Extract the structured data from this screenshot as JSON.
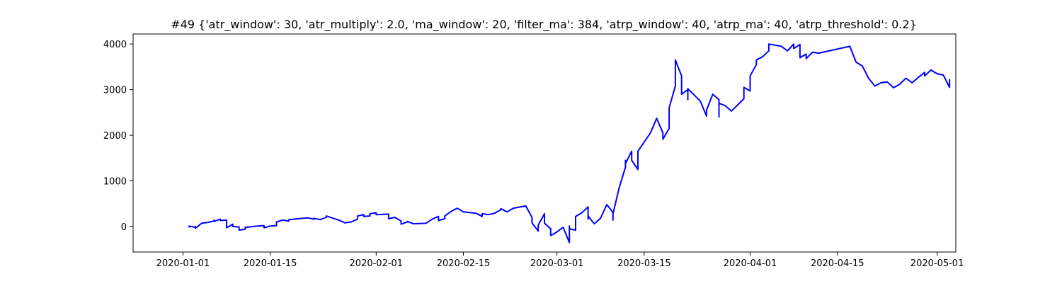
{
  "chart_data": {
    "type": "line",
    "title": "#49 {'atr_window': 30, 'atr_multiply': 2.0, 'ma_window': 20, 'filter_ma': 384, 'atrp_window': 40, 'atrp_ma': 40, 'atrp_threshold': 0.2}",
    "xlabel": "",
    "ylabel": "",
    "x_type": "date",
    "xlim": [
      "2019-12-24",
      "2020-05-04"
    ],
    "ylim": [
      -560,
      4220
    ],
    "x_ticks": [
      "2020-01-01",
      "2020-01-15",
      "2020-02-01",
      "2020-02-15",
      "2020-03-01",
      "2020-03-15",
      "2020-04-01",
      "2020-04-15",
      "2020-05-01"
    ],
    "y_ticks": [
      0,
      1000,
      2000,
      3000,
      4000
    ],
    "grid": false,
    "legend": "none",
    "series": [
      {
        "color": "#0000ff",
        "points": [
          [
            "2020-01-02",
            0
          ],
          [
            "2020-01-02",
            -10
          ],
          [
            "2020-01-02",
            10
          ],
          [
            "2020-01-03",
            -20
          ],
          [
            "2020-01-03",
            0
          ],
          [
            "2020-01-03",
            -40
          ],
          [
            "2020-01-04",
            70
          ],
          [
            "2020-01-05",
            90
          ],
          [
            "2020-01-06",
            120
          ],
          [
            "2020-01-06",
            140
          ],
          [
            "2020-01-06",
            110
          ],
          [
            "2020-01-07",
            160
          ],
          [
            "2020-01-07",
            130
          ],
          [
            "2020-01-08",
            140
          ],
          [
            "2020-01-08",
            -30
          ],
          [
            "2020-01-09",
            50
          ],
          [
            "2020-01-09",
            0
          ],
          [
            "2020-01-10",
            -10
          ],
          [
            "2020-01-10",
            -80
          ],
          [
            "2020-01-11",
            -60
          ],
          [
            "2020-01-11",
            -20
          ],
          [
            "2020-01-13",
            10
          ],
          [
            "2020-01-14",
            20
          ],
          [
            "2020-01-14",
            -30
          ],
          [
            "2020-01-15",
            10
          ],
          [
            "2020-01-16",
            20
          ],
          [
            "2020-01-16",
            100
          ],
          [
            "2020-01-17",
            140
          ],
          [
            "2020-01-18",
            120
          ],
          [
            "2020-01-18",
            150
          ],
          [
            "2020-01-21",
            190
          ],
          [
            "2020-01-22",
            160
          ],
          [
            "2020-01-22",
            180
          ],
          [
            "2020-01-23",
            150
          ],
          [
            "2020-01-24",
            200
          ],
          [
            "2020-01-24",
            230
          ],
          [
            "2020-01-26",
            140
          ],
          [
            "2020-01-27",
            80
          ],
          [
            "2020-01-28",
            100
          ],
          [
            "2020-01-29",
            160
          ],
          [
            "2020-01-29",
            230
          ],
          [
            "2020-01-30",
            260
          ],
          [
            "2020-01-30",
            220
          ],
          [
            "2020-01-31",
            230
          ],
          [
            "2020-01-31",
            280
          ],
          [
            "2020-02-01",
            300
          ],
          [
            "2020-02-01",
            260
          ],
          [
            "2020-02-03",
            270
          ],
          [
            "2020-02-03",
            170
          ],
          [
            "2020-02-04",
            200
          ],
          [
            "2020-02-05",
            120
          ],
          [
            "2020-02-05",
            50
          ],
          [
            "2020-02-06",
            100
          ],
          [
            "2020-02-06",
            110
          ],
          [
            "2020-02-07",
            60
          ],
          [
            "2020-02-09",
            70
          ],
          [
            "2020-02-10",
            160
          ],
          [
            "2020-02-11",
            220
          ],
          [
            "2020-02-11",
            130
          ],
          [
            "2020-02-12",
            170
          ],
          [
            "2020-02-12",
            230
          ],
          [
            "2020-02-13",
            330
          ],
          [
            "2020-02-14",
            400
          ],
          [
            "2020-02-15",
            320
          ],
          [
            "2020-02-17",
            290
          ],
          [
            "2020-02-18",
            220
          ],
          [
            "2020-02-18",
            280
          ],
          [
            "2020-02-19",
            260
          ],
          [
            "2020-02-20",
            290
          ],
          [
            "2020-02-21",
            370
          ],
          [
            "2020-02-21",
            390
          ],
          [
            "2020-02-22",
            320
          ],
          [
            "2020-02-23",
            400
          ],
          [
            "2020-02-25",
            450
          ],
          [
            "2020-02-26",
            200
          ],
          [
            "2020-02-26",
            80
          ],
          [
            "2020-02-27",
            -100
          ],
          [
            "2020-02-27",
            30
          ],
          [
            "2020-02-28",
            280
          ],
          [
            "2020-02-28",
            180
          ],
          [
            "2020-02-28",
            70
          ],
          [
            "2020-02-29",
            -50
          ],
          [
            "2020-02-29",
            -200
          ],
          [
            "2020-03-01",
            -120
          ],
          [
            "2020-03-02",
            -20
          ],
          [
            "2020-03-03",
            -350
          ],
          [
            "2020-03-03",
            10
          ],
          [
            "2020-03-03",
            -50
          ],
          [
            "2020-03-04",
            -80
          ],
          [
            "2020-03-04",
            220
          ],
          [
            "2020-03-05",
            300
          ],
          [
            "2020-03-06",
            430
          ],
          [
            "2020-03-06",
            160
          ],
          [
            "2020-03-06",
            230
          ],
          [
            "2020-03-07",
            60
          ],
          [
            "2020-03-08",
            180
          ],
          [
            "2020-03-09",
            480
          ],
          [
            "2020-03-10",
            310
          ],
          [
            "2020-03-10",
            140
          ],
          [
            "2020-03-10",
            280
          ],
          [
            "2020-03-11",
            850
          ],
          [
            "2020-03-12",
            1300
          ],
          [
            "2020-03-12",
            1450
          ],
          [
            "2020-03-12",
            1380
          ],
          [
            "2020-03-13",
            1650
          ],
          [
            "2020-03-13",
            1450
          ],
          [
            "2020-03-14",
            1250
          ],
          [
            "2020-03-14",
            1650
          ],
          [
            "2020-03-16",
            2050
          ],
          [
            "2020-03-17",
            2370
          ],
          [
            "2020-03-18",
            2050
          ],
          [
            "2020-03-18",
            1910
          ],
          [
            "2020-03-19",
            2150
          ],
          [
            "2020-03-19",
            2600
          ],
          [
            "2020-03-20",
            3080
          ],
          [
            "2020-03-20",
            3650
          ],
          [
            "2020-03-21",
            3300
          ],
          [
            "2020-03-21",
            2900
          ],
          [
            "2020-03-22",
            3000
          ],
          [
            "2020-03-22",
            2780
          ],
          [
            "2020-03-22",
            3020
          ],
          [
            "2020-03-24",
            2750
          ],
          [
            "2020-03-25",
            2420
          ],
          [
            "2020-03-25",
            2550
          ],
          [
            "2020-03-26",
            2900
          ],
          [
            "2020-03-27",
            2780
          ],
          [
            "2020-03-27",
            2400
          ],
          [
            "2020-03-27",
            2700
          ],
          [
            "2020-03-28",
            2650
          ],
          [
            "2020-03-29",
            2530
          ],
          [
            "2020-03-31",
            2800
          ],
          [
            "2020-03-31",
            3050
          ],
          [
            "2020-04-01",
            2970
          ],
          [
            "2020-04-01",
            3300
          ],
          [
            "2020-04-02",
            3550
          ],
          [
            "2020-04-02",
            3650
          ],
          [
            "2020-04-03",
            3720
          ],
          [
            "2020-04-04",
            3850
          ],
          [
            "2020-04-04",
            4000
          ],
          [
            "2020-04-06",
            3950
          ],
          [
            "2020-04-07",
            3850
          ],
          [
            "2020-04-08",
            4000
          ],
          [
            "2020-04-08",
            3900
          ],
          [
            "2020-04-09",
            3990
          ],
          [
            "2020-04-09",
            3700
          ],
          [
            "2020-04-10",
            3780
          ],
          [
            "2020-04-10",
            3680
          ],
          [
            "2020-04-11",
            3820
          ],
          [
            "2020-04-12",
            3800
          ],
          [
            "2020-04-17",
            3950
          ],
          [
            "2020-04-18",
            3600
          ],
          [
            "2020-04-19",
            3520
          ],
          [
            "2020-04-20",
            3250
          ],
          [
            "2020-04-21",
            3080
          ],
          [
            "2020-04-22",
            3150
          ],
          [
            "2020-04-23",
            3170
          ],
          [
            "2020-04-24",
            3040
          ],
          [
            "2020-04-25",
            3120
          ],
          [
            "2020-04-26",
            3250
          ],
          [
            "2020-04-27",
            3150
          ],
          [
            "2020-04-28",
            3270
          ],
          [
            "2020-04-29",
            3380
          ],
          [
            "2020-04-29",
            3300
          ],
          [
            "2020-04-30",
            3430
          ],
          [
            "2020-05-01",
            3350
          ],
          [
            "2020-05-02",
            3320
          ],
          [
            "2020-05-03",
            3050
          ],
          [
            "2020-05-03",
            3220
          ],
          [
            "2020-05-03",
            3100
          ]
        ]
      }
    ]
  }
}
